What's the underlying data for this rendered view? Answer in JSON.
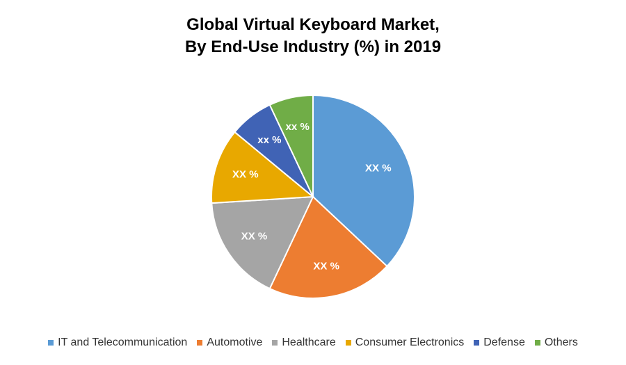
{
  "chart_data": {
    "type": "pie",
    "title": [
      "Global Virtual Keyboard Market,",
      "By End-Use Industry (%) in 2019"
    ],
    "slices": [
      {
        "name": "IT and Telecommunication",
        "value": 37,
        "label": "XX %",
        "color": "#5B9BD5"
      },
      {
        "name": "Automotive",
        "value": 20,
        "label": "XX %",
        "color": "#ED7D31"
      },
      {
        "name": "Healthcare",
        "value": 17,
        "label": "XX %",
        "color": "#A5A5A5"
      },
      {
        "name": "Consumer Electronics",
        "value": 12,
        "label": "XX %",
        "color": "#E8A800"
      },
      {
        "name": "Defense",
        "value": 7,
        "label": "xx %",
        "color": "#4063B5"
      },
      {
        "name": "Others",
        "value": 7,
        "label": "xx %",
        "color": "#70AD47"
      }
    ],
    "legend_position": "bottom"
  }
}
